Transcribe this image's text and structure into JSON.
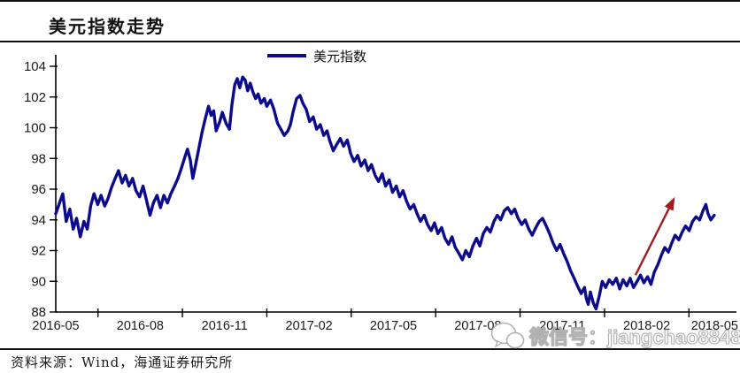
{
  "header": {
    "title": "美元指数走势"
  },
  "legend": {
    "label": "美元指数",
    "line_color": "#0b0b8b"
  },
  "source": {
    "text": "资料来源：Wind，海通证券研究所"
  },
  "watermark": {
    "icon": "wechat-icon",
    "text": "微信号：jiangchao8848"
  },
  "colors": {
    "line": "#0b0b8b",
    "arrow": "#9e1f1f",
    "axis": "#000000",
    "tick_text": "#1a1a1a"
  },
  "chart_data": {
    "type": "line",
    "title": "美元指数走势",
    "xlabel": "",
    "ylabel": "",
    "grid": false,
    "legend_position": "top-center",
    "y_axis": {
      "min": 88,
      "max": 104,
      "step": 2
    },
    "x_axis": {
      "labels": [
        "2016-05",
        "2016-08",
        "2016-11",
        "2017-02",
        "2017-05",
        "2017-08",
        "2017-11",
        "2018-02",
        "2018-05"
      ],
      "label_month_positions": [
        0,
        3,
        6,
        9,
        12,
        15,
        18,
        21,
        24
      ],
      "range_months": [
        0,
        24
      ],
      "tick_midpoints": [
        1.5,
        4.5,
        7.5,
        10.5,
        13.5,
        16.5,
        19.5,
        22.5
      ]
    },
    "annotation": {
      "type": "arrow",
      "color": "#9e1f1f",
      "from": {
        "x": 20.6,
        "y": 90.4
      },
      "to": {
        "x": 22.0,
        "y": 95.5
      }
    },
    "series": [
      {
        "name": "美元指数",
        "color": "#0b0b8b",
        "points": [
          [
            0,
            94.4
          ],
          [
            0.25,
            95.7
          ],
          [
            0.37,
            93.9
          ],
          [
            0.5,
            94.7
          ],
          [
            0.62,
            93.4
          ],
          [
            0.74,
            94.1
          ],
          [
            0.87,
            92.9
          ],
          [
            1,
            93.9
          ],
          [
            1.12,
            93.4
          ],
          [
            1.24,
            94.9
          ],
          [
            1.36,
            95.7
          ],
          [
            1.49,
            95
          ],
          [
            1.61,
            95.6
          ],
          [
            1.74,
            94.9
          ],
          [
            1.86,
            95.4
          ],
          [
            1.98,
            96.1
          ],
          [
            2.11,
            96.7
          ],
          [
            2.23,
            97.2
          ],
          [
            2.36,
            96.4
          ],
          [
            2.48,
            96.9
          ],
          [
            2.6,
            96.2
          ],
          [
            2.73,
            96.7
          ],
          [
            2.85,
            95.9
          ],
          [
            2.98,
            95.5
          ],
          [
            3.1,
            96.2
          ],
          [
            3.22,
            95.3
          ],
          [
            3.35,
            94.3
          ],
          [
            3.47,
            95.1
          ],
          [
            3.6,
            95.6
          ],
          [
            3.72,
            94.8
          ],
          [
            3.84,
            95.6
          ],
          [
            3.97,
            95.1
          ],
          [
            4.09,
            95.7
          ],
          [
            4.22,
            96.2
          ],
          [
            4.34,
            96.7
          ],
          [
            4.47,
            97.4
          ],
          [
            4.59,
            98.1
          ],
          [
            4.68,
            98.6
          ],
          [
            4.78,
            97.9
          ],
          [
            4.87,
            96.7
          ],
          [
            4.96,
            97.5
          ],
          [
            5.09,
            98.7
          ],
          [
            5.21,
            99.8
          ],
          [
            5.33,
            100.7
          ],
          [
            5.43,
            101.4
          ],
          [
            5.52,
            100.8
          ],
          [
            5.61,
            101.1
          ],
          [
            5.7,
            99.8
          ],
          [
            5.83,
            100.4
          ],
          [
            5.92,
            101
          ],
          [
            6.05,
            100.3
          ],
          [
            6.17,
            99.9
          ],
          [
            6.26,
            101.5
          ],
          [
            6.36,
            102.8
          ],
          [
            6.45,
            103.2
          ],
          [
            6.54,
            102.6
          ],
          [
            6.64,
            103.3
          ],
          [
            6.73,
            103.1
          ],
          [
            6.82,
            102.4
          ],
          [
            6.91,
            102.9
          ],
          [
            7.01,
            102.3
          ],
          [
            7.1,
            101.9
          ],
          [
            7.19,
            102.2
          ],
          [
            7.29,
            101.6
          ],
          [
            7.41,
            101.9
          ],
          [
            7.5,
            101.4
          ],
          [
            7.63,
            101.8
          ],
          [
            7.75,
            101.2
          ],
          [
            7.88,
            100.3
          ],
          [
            8,
            99.9
          ],
          [
            8.12,
            99.5
          ],
          [
            8.25,
            99.8
          ],
          [
            8.34,
            100.2
          ],
          [
            8.43,
            101
          ],
          [
            8.56,
            101.9
          ],
          [
            8.68,
            102.1
          ],
          [
            8.78,
            101.6
          ],
          [
            8.9,
            101.2
          ],
          [
            9.02,
            100.4
          ],
          [
            9.15,
            100.7
          ],
          [
            9.27,
            99.9
          ],
          [
            9.4,
            100.2
          ],
          [
            9.52,
            99.5
          ],
          [
            9.64,
            99.8
          ],
          [
            9.73,
            99.2
          ],
          [
            9.86,
            98.5
          ],
          [
            9.98,
            98.9
          ],
          [
            10.11,
            99.3
          ],
          [
            10.23,
            98.8
          ],
          [
            10.36,
            99.2
          ],
          [
            10.48,
            98.3
          ],
          [
            10.6,
            97.8
          ],
          [
            10.73,
            98.2
          ],
          [
            10.85,
            97.5
          ],
          [
            10.98,
            97.9
          ],
          [
            11.1,
            97.2
          ],
          [
            11.22,
            97.6
          ],
          [
            11.35,
            96.9
          ],
          [
            11.47,
            96.5
          ],
          [
            11.6,
            97
          ],
          [
            11.72,
            96.2
          ],
          [
            11.85,
            96.6
          ],
          [
            11.97,
            95.8
          ],
          [
            12.1,
            96.2
          ],
          [
            12.22,
            95.5
          ],
          [
            12.34,
            95.9
          ],
          [
            12.47,
            95.2
          ],
          [
            12.59,
            94.7
          ],
          [
            12.72,
            95
          ],
          [
            12.84,
            94.4
          ],
          [
            12.96,
            93.9
          ],
          [
            13.09,
            94.3
          ],
          [
            13.21,
            93.7
          ],
          [
            13.34,
            93.3
          ],
          [
            13.46,
            93.8
          ],
          [
            13.58,
            93.1
          ],
          [
            13.71,
            93.5
          ],
          [
            13.83,
            92.8
          ],
          [
            13.96,
            92.4
          ],
          [
            14.08,
            92.9
          ],
          [
            14.2,
            92.2
          ],
          [
            14.33,
            91.8
          ],
          [
            14.45,
            91.4
          ],
          [
            14.57,
            92
          ],
          [
            14.7,
            91.6
          ],
          [
            14.82,
            92.3
          ],
          [
            14.95,
            92.8
          ],
          [
            15.07,
            92.3
          ],
          [
            15.19,
            93.1
          ],
          [
            15.32,
            93.5
          ],
          [
            15.44,
            93.2
          ],
          [
            15.57,
            93.9
          ],
          [
            15.69,
            94.3
          ],
          [
            15.81,
            94
          ],
          [
            15.94,
            94.6
          ],
          [
            16.06,
            94.8
          ],
          [
            16.19,
            94.4
          ],
          [
            16.31,
            94.7
          ],
          [
            16.43,
            94.1
          ],
          [
            16.56,
            93.7
          ],
          [
            16.68,
            94
          ],
          [
            16.81,
            93.4
          ],
          [
            16.93,
            93
          ],
          [
            17.06,
            93.5
          ],
          [
            17.18,
            93.9
          ],
          [
            17.3,
            94.1
          ],
          [
            17.43,
            93.6
          ],
          [
            17.55,
            93.1
          ],
          [
            17.67,
            92.5
          ],
          [
            17.8,
            92
          ],
          [
            17.92,
            92.4
          ],
          [
            18.05,
            91.8
          ],
          [
            18.17,
            91.3
          ],
          [
            18.29,
            90.7
          ],
          [
            18.42,
            90.2
          ],
          [
            18.54,
            89.7
          ],
          [
            18.67,
            89.2
          ],
          [
            18.79,
            89.6
          ],
          [
            18.85,
            88.9
          ],
          [
            18.92,
            88.5
          ],
          [
            19,
            89.3
          ],
          [
            19.1,
            88.6
          ],
          [
            19.2,
            88.2
          ],
          [
            19.32,
            89.1
          ],
          [
            19.42,
            90
          ],
          [
            19.54,
            89.6
          ],
          [
            19.67,
            90.1
          ],
          [
            19.79,
            89.8
          ],
          [
            19.92,
            90.2
          ],
          [
            20.04,
            89.5
          ],
          [
            20.16,
            90.1
          ],
          [
            20.29,
            89.7
          ],
          [
            20.41,
            90.2
          ],
          [
            20.53,
            89.6
          ],
          [
            20.66,
            90
          ],
          [
            20.78,
            90.4
          ],
          [
            20.9,
            89.9
          ],
          [
            21.03,
            90.3
          ],
          [
            21.15,
            89.8
          ],
          [
            21.27,
            90.6
          ],
          [
            21.4,
            91.1
          ],
          [
            21.52,
            91.7
          ],
          [
            21.64,
            92.2
          ],
          [
            21.77,
            91.9
          ],
          [
            21.89,
            92.5
          ],
          [
            22.01,
            93
          ],
          [
            22.14,
            92.7
          ],
          [
            22.26,
            93.2
          ],
          [
            22.38,
            93.6
          ],
          [
            22.51,
            93.3
          ],
          [
            22.63,
            93.9
          ],
          [
            22.75,
            94.2
          ],
          [
            22.88,
            94
          ],
          [
            23,
            94.6
          ],
          [
            23.1,
            95
          ],
          [
            23.18,
            94.4
          ],
          [
            23.28,
            94
          ],
          [
            23.4,
            94.3
          ]
        ]
      }
    ]
  }
}
